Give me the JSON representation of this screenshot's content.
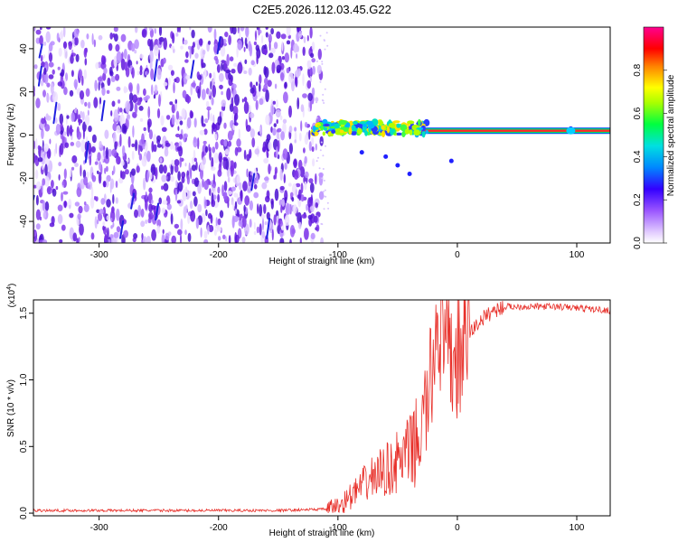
{
  "title": "C2E5.2026.112.03.45.G22",
  "chart_data": [
    {
      "type": "heatmap",
      "name": "spectrogram",
      "xlabel": "Height of straight line (km)",
      "ylabel": "Frequency (Hz)",
      "xlim": [
        -355,
        128
      ],
      "ylim": [
        -50,
        50
      ],
      "x_ticks": [
        -300,
        -200,
        -100,
        0,
        100
      ],
      "y_ticks": [
        -40,
        -20,
        0,
        20,
        40
      ],
      "colorbar": {
        "label": "Normalized spectral amplitude",
        "range": [
          0,
          1
        ],
        "ticks": [
          "0.0",
          "0.2",
          "0.4",
          "0.6",
          "0.8"
        ],
        "tick_values": [
          0,
          0.2,
          0.4,
          0.6,
          0.8
        ],
        "colors": [
          "#ffffff",
          "#b084ff",
          "#5a00e0",
          "#0000ff",
          "#00c8ff",
          "#00ff40",
          "#ffff00",
          "#ff7f00",
          "#ff0000",
          "#ff0090"
        ]
      },
      "noise_region_x": [
        -355,
        -118
      ],
      "signal_band_freq_hz": 2
    },
    {
      "type": "line",
      "name": "snr",
      "xlabel": "Height of straight line (km)",
      "ylabel": "SNR (10 * v/v)",
      "y_multiplier": "(x10",
      "y_multiplier_exp": "4",
      "y_multiplier_close": ")",
      "xlim": [
        -355,
        128
      ],
      "ylim": [
        -0.02,
        1.6
      ],
      "x_ticks": [
        -300,
        -200,
        -100,
        0,
        100
      ],
      "y_ticks": [
        0.0,
        0.5,
        1.0,
        1.5
      ],
      "y_tick_labels": [
        "0.0",
        "0.5",
        "1.0",
        "1.5"
      ],
      "color": "#e8302a",
      "series": [
        {
          "name": "SNR",
          "x": [
            -355,
            -300,
            -250,
            -200,
            -150,
            -110,
            -100,
            -90,
            -80,
            -70,
            -60,
            -50,
            -40,
            -30,
            -25,
            -20,
            -17,
            -15,
            -10,
            -5,
            0,
            5,
            10,
            20,
            30,
            40,
            50,
            60,
            80,
            100,
            128
          ],
          "y": [
            0.02,
            0.02,
            0.02,
            0.02,
            0.02,
            0.03,
            0.05,
            0.12,
            0.2,
            0.28,
            0.32,
            0.38,
            0.45,
            0.6,
            0.85,
            1.1,
            1.55,
            1.35,
            1.2,
            1.15,
            1.15,
            1.25,
            1.35,
            1.45,
            1.52,
            1.55,
            1.55,
            1.55,
            1.55,
            1.54,
            1.52
          ]
        }
      ]
    }
  ]
}
